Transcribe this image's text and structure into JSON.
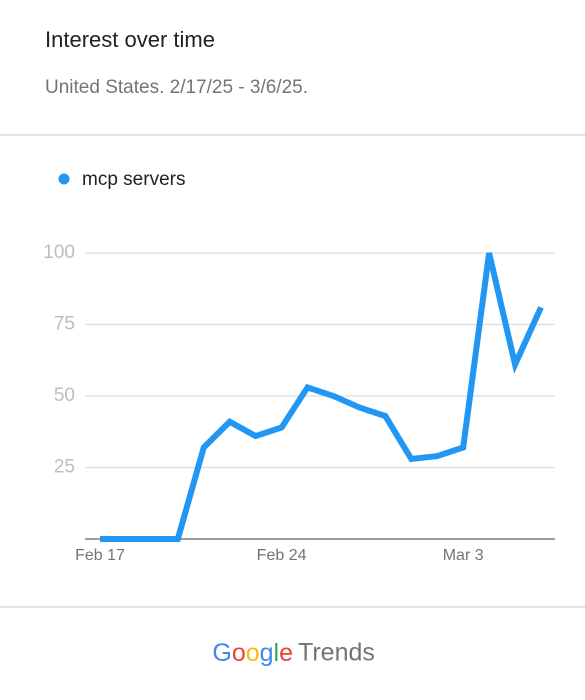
{
  "chart_data": {
    "type": "line",
    "title": "Interest over time",
    "subtitle": "United States. 2/17/25 - 3/6/25.",
    "categories": [
      "Feb 17",
      null,
      null,
      null,
      null,
      null,
      null,
      "Feb 24",
      null,
      null,
      null,
      null,
      null,
      null,
      "Mar 3",
      null,
      null,
      null
    ],
    "series": [
      {
        "name": "mcp servers",
        "color": "#2196f3",
        "values": [
          0,
          0,
          0,
          0,
          32,
          41,
          36,
          39,
          53,
          50,
          46,
          43,
          28,
          29,
          32,
          100,
          61,
          81
        ]
      }
    ],
    "ylim": [
      0,
      100
    ],
    "yticks": [
      25,
      50,
      75,
      100
    ],
    "grid": true
  },
  "footer": {
    "brand": "Google",
    "product": "Trends"
  }
}
